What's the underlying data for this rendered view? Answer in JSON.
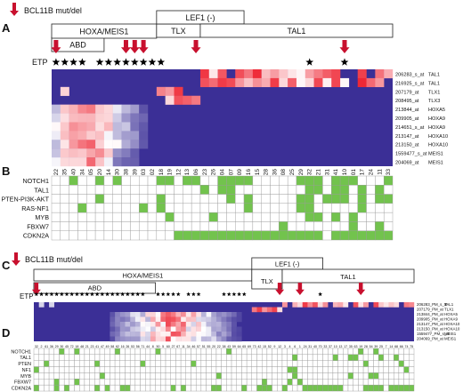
{
  "colors": {
    "arrow": "#c8102e",
    "heat_low": "#3b2f96",
    "heat_mid": "#ffffff",
    "heat_high": "#ee2230",
    "mut_on": "#72c34d",
    "grid_line": "#9a9a9a",
    "text": "#111111"
  },
  "chart_data": [
    {
      "panel_label": "A",
      "type": "heatmap",
      "legend": "BCL11B mut/del",
      "etp_label": "ETP",
      "group_boxes": [
        {
          "label": "ABD",
          "cols": [
            0,
            5
          ]
        },
        {
          "label": "HOXA/MEIS1",
          "cols": [
            0,
            11
          ]
        },
        {
          "label": "TLX",
          "cols": [
            12,
            16
          ]
        },
        {
          "label": "LEF1 (-)",
          "cols": [
            12,
            21
          ]
        },
        {
          "label": "TAL1",
          "cols": [
            17,
            38
          ]
        }
      ],
      "arrow_cols": [
        0,
        8,
        9,
        10,
        16,
        33
      ],
      "etp_cols": [
        0,
        1,
        2,
        3,
        5,
        6,
        7,
        8,
        9,
        10,
        11,
        12,
        29,
        33
      ],
      "samples": [
        "22",
        "35",
        "40",
        "34",
        "05",
        "20",
        "14",
        "30",
        "38",
        "39",
        "03",
        "02",
        "18",
        "19",
        "12",
        "13",
        "06",
        "23",
        "26",
        "04",
        "07",
        "09",
        "16",
        "15",
        "28",
        "36",
        "08",
        "25",
        "29",
        "32",
        "21",
        "31",
        "41",
        "10",
        "01",
        "17",
        "24",
        "11",
        "33"
      ],
      "rows": [
        "206283_s_at",
        "216925_s_at",
        "207179_at",
        "208495_at",
        "213844_at",
        "209905_at",
        "214651_s_at",
        "213147_at",
        "213150_at",
        "1559477_s_at",
        "204069_at"
      ],
      "genes": [
        "TAL1",
        "TAL1",
        "TLX1",
        "TLX3",
        "HOXA5",
        "HOXA9",
        "HOXA9",
        "HOXA10",
        "HOXA10",
        "MEIS1",
        "MEIS1"
      ],
      "mut_rows": [
        "NOTCH1",
        "TAL1",
        "PTEN-PI3K-AKT",
        "RAS-NF1",
        "MYB",
        "FBXW7",
        "CDKN2A"
      ]
    },
    {
      "panel_label": "C",
      "type": "heatmap",
      "legend": "BCL11B mut/del",
      "etp_label": "ETP",
      "group_boxes": [
        {
          "label": "ABD",
          "cols": [
            0,
            23
          ]
        },
        {
          "label": "HOXA/MEIS1",
          "cols": [
            0,
            42
          ]
        },
        {
          "label": "TLX",
          "cols": [
            43,
            48
          ]
        },
        {
          "label": "LEF1 (-)",
          "cols": [
            43,
            56
          ]
        },
        {
          "label": "TAL1",
          "cols": [
            49,
            74
          ]
        }
      ],
      "arrow_cols": [
        0,
        48,
        52,
        64
      ],
      "etp_cols": [
        0,
        1,
        2,
        3,
        4,
        5,
        6,
        7,
        8,
        9,
        10,
        11,
        12,
        13,
        14,
        15,
        16,
        17,
        18,
        19,
        20,
        21,
        24,
        25,
        26,
        27,
        28,
        30,
        31,
        32,
        37,
        38,
        39,
        40,
        41,
        56
      ],
      "samples": [
        "32",
        "2",
        "61",
        "36",
        "29",
        "30",
        "45",
        "72",
        "18",
        "48",
        "21",
        "23",
        "41",
        "47",
        "49",
        "58",
        "62",
        "16",
        "26",
        "53",
        "56",
        "71",
        "44",
        "8",
        "50",
        "5",
        "60",
        "27",
        "67",
        "11",
        "34",
        "46",
        "57",
        "51",
        "55",
        "20",
        "22",
        "38",
        "43",
        "59",
        "64",
        "65",
        "69",
        "73",
        "42",
        "15",
        "52",
        "9",
        "12",
        "3",
        "4",
        "6",
        "1",
        "24",
        "31",
        "40",
        "70",
        "33",
        "37",
        "10",
        "13",
        "17",
        "35",
        "63",
        "19",
        "28",
        "54",
        "39",
        "25",
        "7",
        "14",
        "68",
        "66",
        "74",
        "75"
      ],
      "rows": [
        "206283_PM_s_at",
        "207179_PM_at",
        "213844_PM_at",
        "209905_PM_at",
        "213147_PM_at",
        "213150_PM_at",
        "1559477_PM_s_at",
        "204069_PM_at"
      ],
      "genes": [
        "TAL1",
        "TLX1",
        "HOXA5",
        "HOXA9",
        "HOXA10",
        "HOXA10",
        "MEIS1",
        "MEIS1"
      ],
      "mut_rows": [
        "NOTCH1",
        "TAL1",
        "PTEN",
        "NF1",
        "MYB",
        "FBXW7",
        "CDKN2A"
      ]
    }
  ],
  "panels": {
    "b_label": "B",
    "d_label": "D"
  }
}
